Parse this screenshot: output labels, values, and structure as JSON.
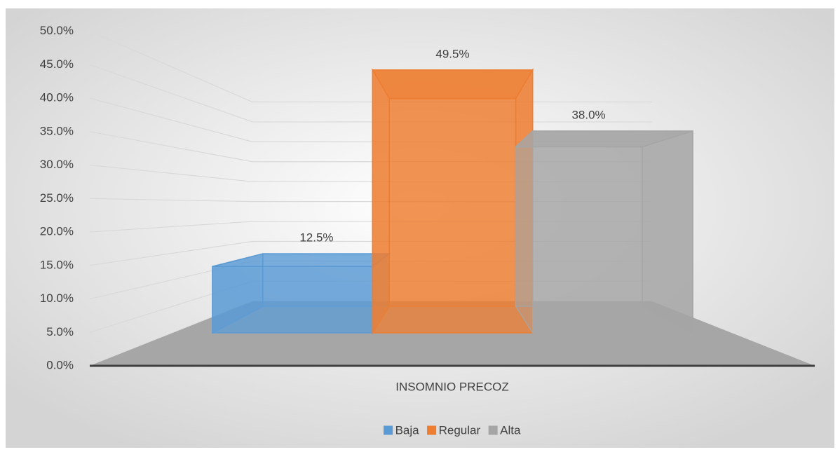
{
  "chart_data": {
    "type": "bar3d",
    "categories": [
      "INSOMNIO PRECOZ"
    ],
    "series": [
      {
        "name": "Baja",
        "color": "#5b9bd5",
        "values": [
          12.5
        ],
        "value_labels": [
          "12.5%"
        ]
      },
      {
        "name": "Regular",
        "color": "#ed7d31",
        "values": [
          49.5
        ],
        "value_labels": [
          "49.5%"
        ]
      },
      {
        "name": "Alta",
        "color": "#a5a5a5",
        "values": [
          38.0
        ],
        "value_labels": [
          "38.0%"
        ]
      }
    ],
    "ylim": [
      0,
      50
    ],
    "yticks": [
      {
        "value": 0,
        "label": "0.0%"
      },
      {
        "value": 5,
        "label": "5.0%"
      },
      {
        "value": 10,
        "label": "10.0%"
      },
      {
        "value": 15,
        "label": "15.0%"
      },
      {
        "value": 20,
        "label": "20.0%"
      },
      {
        "value": 25,
        "label": "25.0%"
      },
      {
        "value": 30,
        "label": "30.0%"
      },
      {
        "value": 35,
        "label": "35.0%"
      },
      {
        "value": 40,
        "label": "40.0%"
      },
      {
        "value": 45,
        "label": "45.0%"
      },
      {
        "value": 50,
        "label": "50.0%"
      }
    ],
    "grid": true,
    "legend": "bottom"
  }
}
